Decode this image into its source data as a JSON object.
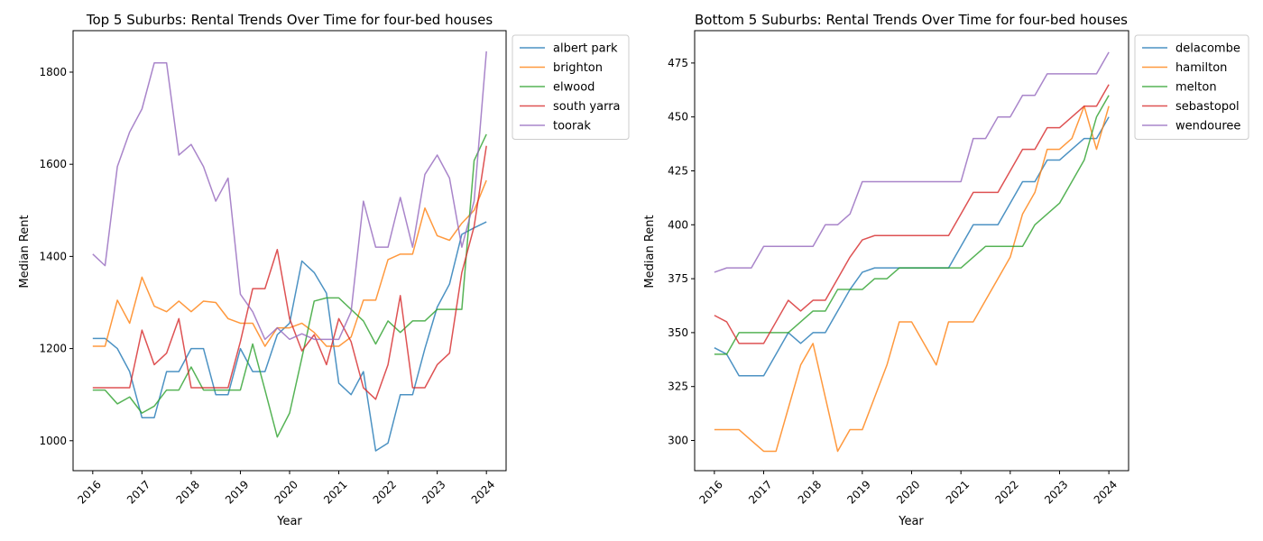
{
  "chart_data": [
    {
      "type": "line",
      "title": "Top 5 Suburbs: Rental Trends Over Time for four-bed houses",
      "xlabel": "Year",
      "ylabel": "Median Rent",
      "xlim": [
        2015.6,
        2024.4
      ],
      "ylim": [
        935,
        1890
      ],
      "xticks": [
        "2016",
        "2017",
        "2018",
        "2019",
        "2020",
        "2021",
        "2022",
        "2023",
        "2024"
      ],
      "yticks": [
        "1000",
        "1200",
        "1400",
        "1600",
        "1800"
      ],
      "legend": "outside-top-right",
      "x": [
        2016,
        2016.25,
        2016.5,
        2016.75,
        2017,
        2017.25,
        2017.5,
        2017.75,
        2018,
        2018.25,
        2018.5,
        2018.75,
        2019,
        2019.25,
        2019.5,
        2019.75,
        2020,
        2020.25,
        2020.5,
        2020.75,
        2021,
        2021.25,
        2021.5,
        2021.75,
        2022,
        2022.25,
        2022.5,
        2022.75,
        2023,
        2023.25,
        2023.5,
        2023.75,
        2024
      ],
      "series": [
        {
          "name": "albert park",
          "color": "#1f77b4",
          "values": [
            1222,
            1222,
            1200,
            1150,
            1050,
            1050,
            1150,
            1150,
            1200,
            1200,
            1100,
            1100,
            1200,
            1150,
            1150,
            1230,
            1255,
            1390,
            1365,
            1320,
            1125,
            1100,
            1150,
            978,
            995,
            1100,
            1100,
            1200,
            1290,
            1340,
            1448,
            1462,
            1475
          ]
        },
        {
          "name": "brighton",
          "color": "#ff7f0e",
          "values": [
            1205,
            1205,
            1305,
            1255,
            1355,
            1292,
            1280,
            1303,
            1280,
            1303,
            1300,
            1265,
            1255,
            1255,
            1205,
            1245,
            1245,
            1255,
            1235,
            1205,
            1205,
            1225,
            1305,
            1305,
            1393,
            1405,
            1405,
            1505,
            1445,
            1435,
            1472,
            1500,
            1565
          ]
        },
        {
          "name": "elwood",
          "color": "#2ca02c",
          "values": [
            1110,
            1110,
            1080,
            1095,
            1060,
            1075,
            1110,
            1110,
            1160,
            1110,
            1110,
            1110,
            1110,
            1210,
            1110,
            1008,
            1060,
            1180,
            1303,
            1310,
            1310,
            1285,
            1260,
            1210,
            1260,
            1235,
            1260,
            1260,
            1285,
            1285,
            1285,
            1608,
            1665
          ]
        },
        {
          "name": "south yarra",
          "color": "#d62728",
          "values": [
            1115,
            1115,
            1115,
            1115,
            1240,
            1165,
            1190,
            1265,
            1115,
            1115,
            1115,
            1115,
            1215,
            1330,
            1330,
            1415,
            1265,
            1195,
            1230,
            1165,
            1265,
            1215,
            1115,
            1090,
            1165,
            1315,
            1115,
            1115,
            1165,
            1190,
            1365,
            1465,
            1640
          ]
        },
        {
          "name": "toorak",
          "color": "#9467bd",
          "values": [
            1405,
            1380,
            1595,
            1670,
            1720,
            1820,
            1820,
            1620,
            1643,
            1595,
            1520,
            1570,
            1318,
            1280,
            1220,
            1245,
            1220,
            1232,
            1220,
            1220,
            1220,
            1280,
            1520,
            1420,
            1420,
            1528,
            1420,
            1578,
            1620,
            1570,
            1420,
            1520,
            1845
          ]
        }
      ]
    },
    {
      "type": "line",
      "title": "Bottom 5 Suburbs: Rental Trends Over Time for four-bed houses",
      "xlabel": "Year",
      "ylabel": "Median Rent",
      "xlim": [
        2015.6,
        2024.4
      ],
      "ylim": [
        286,
        490
      ],
      "xticks": [
        "2016",
        "2017",
        "2018",
        "2019",
        "2020",
        "2021",
        "2022",
        "2023",
        "2024"
      ],
      "yticks": [
        "300",
        "325",
        "350",
        "375",
        "400",
        "425",
        "450",
        "475"
      ],
      "legend": "outside-top-right",
      "x": [
        2016,
        2016.25,
        2016.5,
        2016.75,
        2017,
        2017.25,
        2017.5,
        2017.75,
        2018,
        2018.25,
        2018.5,
        2018.75,
        2019,
        2019.25,
        2019.5,
        2019.75,
        2020,
        2020.25,
        2020.5,
        2020.75,
        2021,
        2021.25,
        2021.5,
        2021.75,
        2022,
        2022.25,
        2022.5,
        2022.75,
        2023,
        2023.25,
        2023.5,
        2023.75,
        2024
      ],
      "series": [
        {
          "name": "delacombe",
          "color": "#1f77b4",
          "values": [
            343,
            340,
            330,
            330,
            330,
            340,
            350,
            345,
            350,
            350,
            360,
            370,
            378,
            380,
            380,
            380,
            380,
            380,
            380,
            380,
            390,
            400,
            400,
            400,
            410,
            420,
            420,
            430,
            430,
            435,
            440,
            440,
            450
          ]
        },
        {
          "name": "hamilton",
          "color": "#ff7f0e",
          "values": [
            305,
            305,
            305,
            300,
            295,
            295,
            315,
            335,
            345,
            320,
            295,
            305,
            305,
            320,
            335,
            355,
            355,
            345,
            335,
            355,
            355,
            355,
            365,
            375,
            385,
            405,
            415,
            435,
            435,
            440,
            455,
            435,
            455
          ]
        },
        {
          "name": "melton",
          "color": "#2ca02c",
          "values": [
            340,
            340,
            350,
            350,
            350,
            350,
            350,
            355,
            360,
            360,
            370,
            370,
            370,
            375,
            375,
            380,
            380,
            380,
            380,
            380,
            380,
            385,
            390,
            390,
            390,
            390,
            400,
            405,
            410,
            420,
            430,
            450,
            460
          ]
        },
        {
          "name": "sebastopol",
          "color": "#d62728",
          "values": [
            358,
            355,
            345,
            345,
            345,
            355,
            365,
            360,
            365,
            365,
            375,
            385,
            393,
            395,
            395,
            395,
            395,
            395,
            395,
            395,
            405,
            415,
            415,
            415,
            425,
            435,
            435,
            445,
            445,
            450,
            455,
            455,
            465
          ]
        },
        {
          "name": "wendouree",
          "color": "#9467bd",
          "values": [
            378,
            380,
            380,
            380,
            390,
            390,
            390,
            390,
            390,
            400,
            400,
            405,
            420,
            420,
            420,
            420,
            420,
            420,
            420,
            420,
            420,
            440,
            440,
            450,
            450,
            460,
            460,
            470,
            470,
            470,
            470,
            470,
            480
          ]
        }
      ]
    }
  ]
}
